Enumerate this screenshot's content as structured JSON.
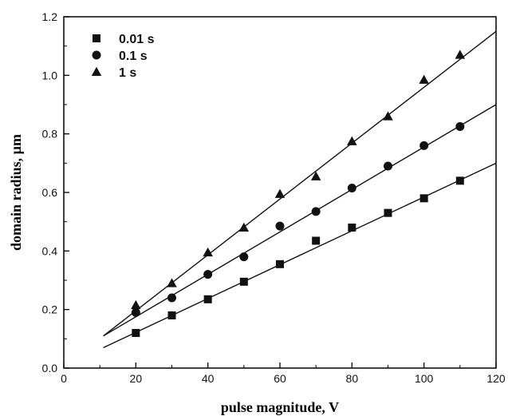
{
  "chart_data": {
    "type": "scatter",
    "xlabel": "pulse magnitude, V",
    "ylabel": "domain radius, µm",
    "xlim": [
      0,
      120
    ],
    "ylim": [
      0.0,
      1.2
    ],
    "x_ticks": [
      0,
      20,
      40,
      60,
      80,
      100,
      120
    ],
    "y_ticks": [
      0.0,
      0.2,
      0.4,
      0.6,
      0.8,
      1.0,
      1.2
    ],
    "x_tick_labels": [
      "0",
      "20",
      "40",
      "60",
      "80",
      "100",
      "120"
    ],
    "y_tick_labels": [
      "0.0",
      "0.2",
      "0.4",
      "0.6",
      "0.8",
      "1.0",
      "1.2"
    ],
    "grid": false,
    "legend_position": "top-left",
    "series": [
      {
        "name": "0.01 s",
        "marker": "square",
        "x": [
          20,
          30,
          40,
          50,
          60,
          70,
          80,
          90,
          100,
          110
        ],
        "y": [
          0.12,
          0.18,
          0.235,
          0.295,
          0.355,
          0.435,
          0.48,
          0.53,
          0.58,
          0.64
        ],
        "fit": {
          "x": [
            11,
            120
          ],
          "y": [
            0.07,
            0.7
          ]
        }
      },
      {
        "name": "0.1 s",
        "marker": "circle",
        "x": [
          20,
          30,
          40,
          50,
          60,
          70,
          80,
          90,
          100,
          110
        ],
        "y": [
          0.19,
          0.24,
          0.32,
          0.38,
          0.485,
          0.535,
          0.615,
          0.69,
          0.76,
          0.825
        ],
        "fit": {
          "x": [
            11,
            120
          ],
          "y": [
            0.11,
            0.9
          ]
        }
      },
      {
        "name": "1 s",
        "marker": "triangle",
        "x": [
          20,
          30,
          40,
          50,
          60,
          70,
          80,
          90,
          100,
          110
        ],
        "y": [
          0.215,
          0.29,
          0.395,
          0.48,
          0.595,
          0.655,
          0.775,
          0.86,
          0.985,
          1.07
        ],
        "fit": {
          "x": [
            11,
            120
          ],
          "y": [
            0.11,
            1.15
          ]
        }
      }
    ]
  },
  "colors": {
    "marker": "#111111",
    "line": "#111111",
    "axis": "#000000",
    "background": "#ffffff"
  }
}
